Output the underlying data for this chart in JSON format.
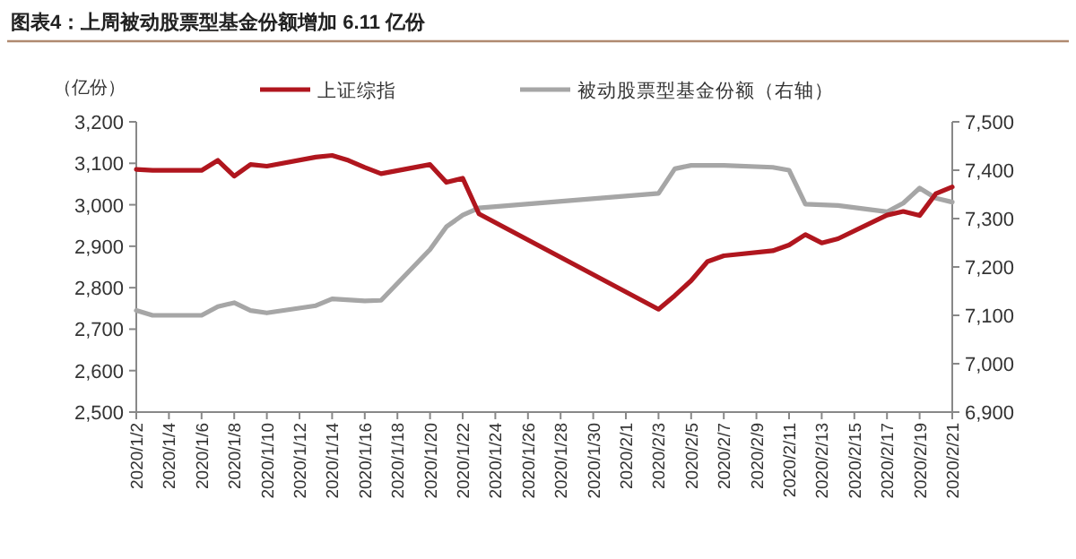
{
  "chart_data": {
    "type": "line",
    "title": "图表4：上周被动股票型基金份额增加 6.11 亿份",
    "ylabel": "（亿份）",
    "legend": "top",
    "grid": false,
    "marker": "none",
    "line_style": "solid",
    "xlim": [
      "2020-01-02",
      "2020-02-21"
    ],
    "xticks": [
      {
        "value": "2020-01-02",
        "label": "2020/1/2"
      },
      {
        "value": "2020-01-04",
        "label": "2020/1/4"
      },
      {
        "value": "2020-01-06",
        "label": "2020/1/6"
      },
      {
        "value": "2020-01-08",
        "label": "2020/1/8"
      },
      {
        "value": "2020-01-10",
        "label": "2020/1/10"
      },
      {
        "value": "2020-01-12",
        "label": "2020/1/12"
      },
      {
        "value": "2020-01-14",
        "label": "2020/1/14"
      },
      {
        "value": "2020-01-16",
        "label": "2020/1/16"
      },
      {
        "value": "2020-01-18",
        "label": "2020/1/18"
      },
      {
        "value": "2020-01-20",
        "label": "2020/1/20"
      },
      {
        "value": "2020-01-22",
        "label": "2020/1/22"
      },
      {
        "value": "2020-01-24",
        "label": "2020/1/24"
      },
      {
        "value": "2020-01-26",
        "label": "2020/1/26"
      },
      {
        "value": "2020-01-28",
        "label": "2020/1/28"
      },
      {
        "value": "2020-01-30",
        "label": "2020/1/30"
      },
      {
        "value": "2020-02-01",
        "label": "2020/2/1"
      },
      {
        "value": "2020-02-03",
        "label": "2020/2/3"
      },
      {
        "value": "2020-02-05",
        "label": "2020/2/5"
      },
      {
        "value": "2020-02-07",
        "label": "2020/2/7"
      },
      {
        "value": "2020-02-09",
        "label": "2020/2/9"
      },
      {
        "value": "2020-02-11",
        "label": "2020/2/11"
      },
      {
        "value": "2020-02-13",
        "label": "2020/2/13"
      },
      {
        "value": "2020-02-15",
        "label": "2020/2/15"
      },
      {
        "value": "2020-02-17",
        "label": "2020/2/17"
      },
      {
        "value": "2020-02-19",
        "label": "2020/2/19"
      },
      {
        "value": "2020-02-21",
        "label": "2020/2/21"
      }
    ],
    "ylim": [
      2500,
      3200
    ],
    "yticks": [
      {
        "value": 2500,
        "label": "2,500"
      },
      {
        "value": 2600,
        "label": "2,600"
      },
      {
        "value": 2700,
        "label": "2,700"
      },
      {
        "value": 2800,
        "label": "2,800"
      },
      {
        "value": 2900,
        "label": "2,900"
      },
      {
        "value": 3000,
        "label": "3,000"
      },
      {
        "value": 3100,
        "label": "3,100"
      },
      {
        "value": 3200,
        "label": "3,200"
      }
    ],
    "y2lim": [
      6900,
      7500
    ],
    "y2ticks": [
      {
        "value": 6900,
        "label": "6,900"
      },
      {
        "value": 7000,
        "label": "7,000"
      },
      {
        "value": 7100,
        "label": "7,100"
      },
      {
        "value": 7200,
        "label": "7,200"
      },
      {
        "value": 7300,
        "label": "7,300"
      },
      {
        "value": 7400,
        "label": "7,400"
      },
      {
        "value": 7500,
        "label": "7,500"
      }
    ],
    "series": [
      {
        "name": "上证综指",
        "color": "#b0161e",
        "x": [
          "2020-01-02",
          "2020-01-03",
          "2020-01-06",
          "2020-01-07",
          "2020-01-08",
          "2020-01-09",
          "2020-01-10",
          "2020-01-13",
          "2020-01-14",
          "2020-01-15",
          "2020-01-16",
          "2020-01-17",
          "2020-01-20",
          "2020-01-21",
          "2020-01-22",
          "2020-01-23",
          "2020-02-03",
          "2020-02-04",
          "2020-02-05",
          "2020-02-06",
          "2020-02-07",
          "2020-02-10",
          "2020-02-11",
          "2020-02-12",
          "2020-02-13",
          "2020-02-14",
          "2020-02-17",
          "2020-02-18",
          "2020-02-19",
          "2020-02-20",
          "2020-02-21"
        ],
        "values": [
          3085,
          3083,
          3083,
          3107,
          3069,
          3097,
          3093,
          3115,
          3119,
          3107,
          3090,
          3075,
          3097,
          3054,
          3064,
          2978,
          2748,
          2781,
          2817,
          2863,
          2877,
          2889,
          2903,
          2928,
          2908,
          2918,
          2975,
          2984,
          2974,
          3027,
          3043
        ]
      },
      {
        "name": "被动股票型基金份额（右轴）",
        "color": "#a6a6a6",
        "axis": "y2",
        "x": [
          "2020-01-02",
          "2020-01-03",
          "2020-01-06",
          "2020-01-07",
          "2020-01-08",
          "2020-01-09",
          "2020-01-10",
          "2020-01-13",
          "2020-01-14",
          "2020-01-16",
          "2020-01-17",
          "2020-01-20",
          "2020-01-21",
          "2020-01-22",
          "2020-01-23",
          "2020-02-03",
          "2020-02-04",
          "2020-02-05",
          "2020-02-07",
          "2020-02-10",
          "2020-02-11",
          "2020-02-12",
          "2020-02-14",
          "2020-02-17",
          "2020-02-18",
          "2020-02-19",
          "2020-02-20",
          "2020-02-21"
        ],
        "values": [
          7110,
          7100,
          7100,
          7118,
          7126,
          7110,
          7105,
          7120,
          7134,
          7130,
          7131,
          7236,
          7283,
          7307,
          7322,
          7352,
          7403,
          7410,
          7410,
          7406,
          7400,
          7330,
          7327,
          7314,
          7332,
          7363,
          7342,
          7334
        ]
      }
    ]
  }
}
